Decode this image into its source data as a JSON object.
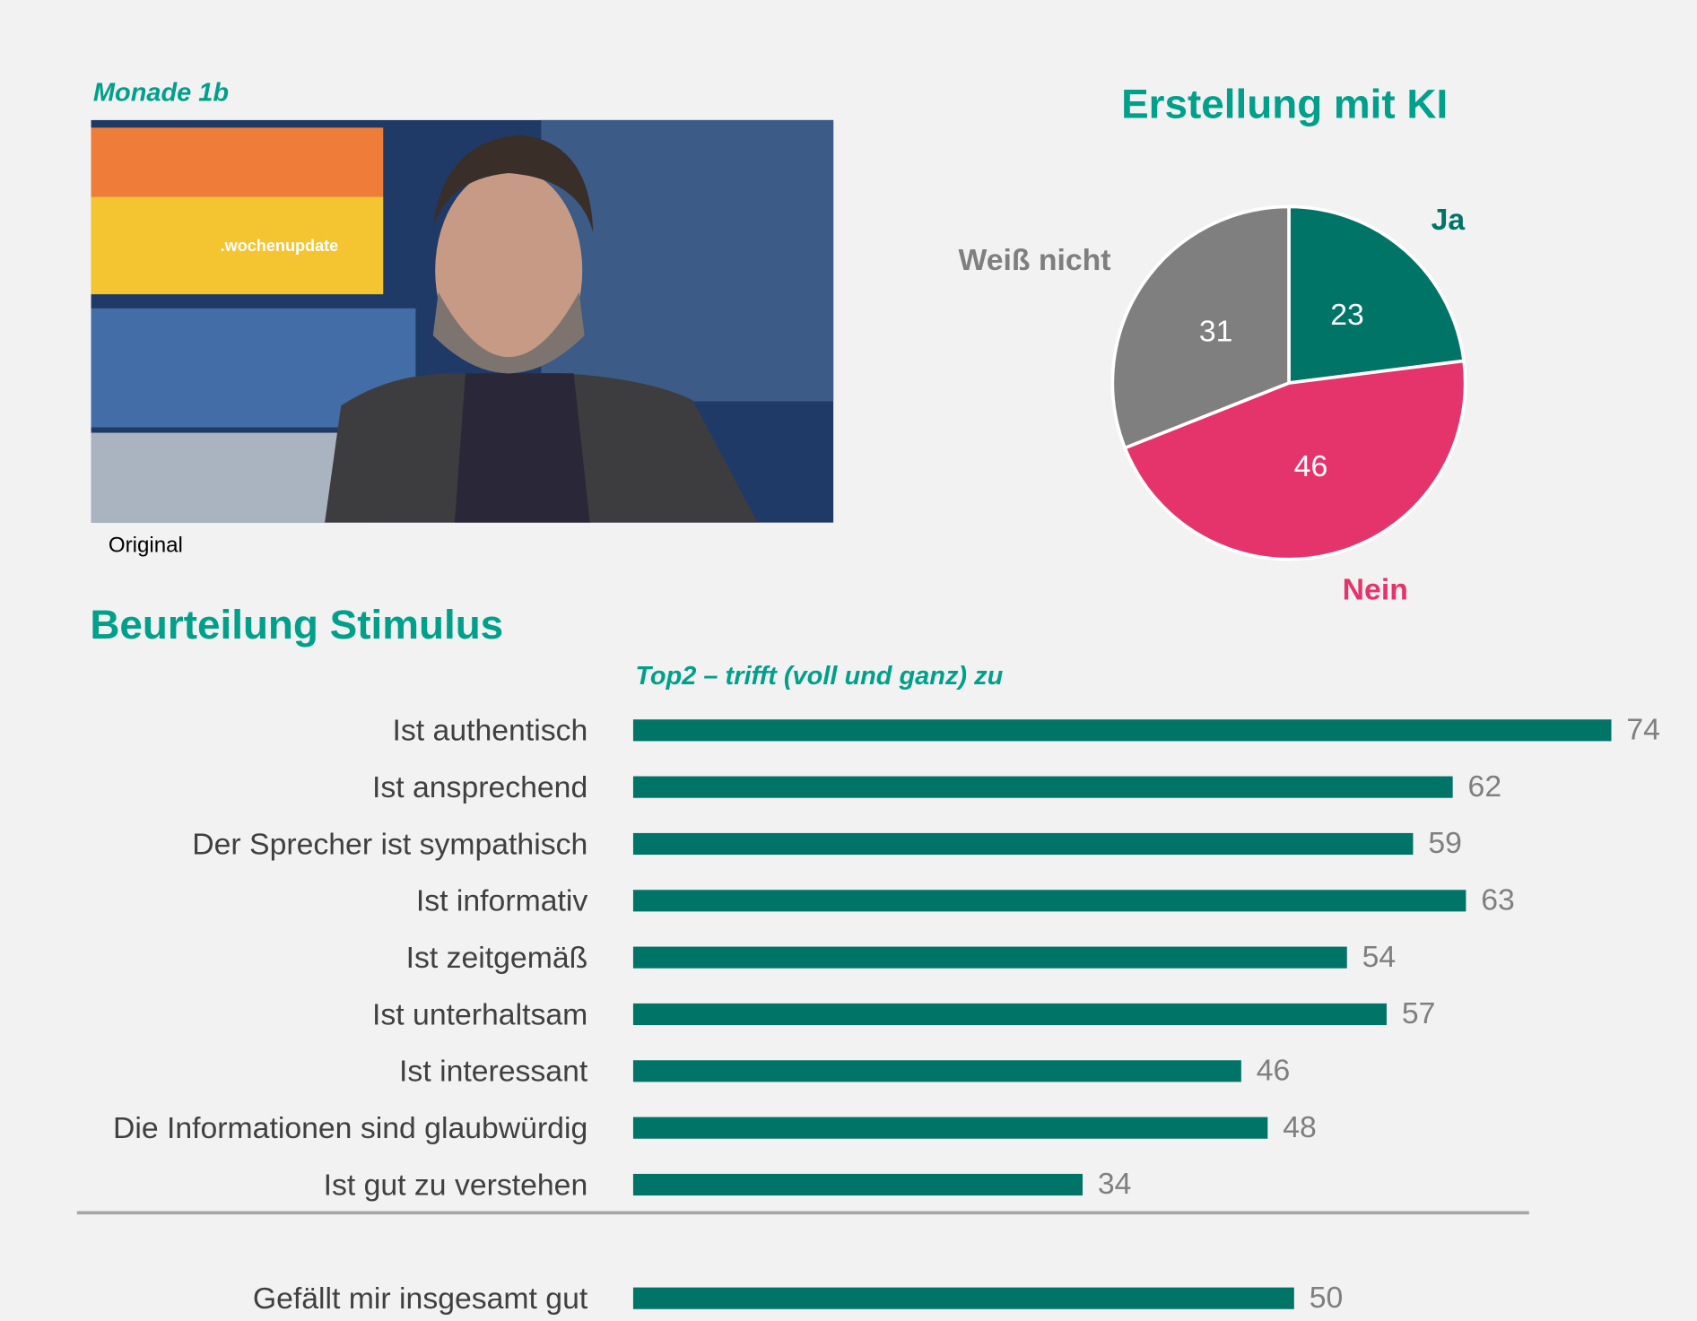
{
  "label": "Monade 1b",
  "image_caption": "Original",
  "image_text": ".wochenupdate",
  "chart_data": [
    {
      "type": "pie",
      "title": "Erstellung mit KI",
      "categories": [
        "Ja",
        "Nein",
        "Weiß nicht"
      ],
      "values": [
        23,
        46,
        31
      ],
      "colors": [
        "#007467",
        "#e5336b",
        "#7f7f7f"
      ],
      "label_colors": [
        "#007467",
        "#e5336b",
        "#7f7f7f"
      ]
    },
    {
      "type": "bar",
      "title": "Beurteilung Stimulus",
      "subtitle": "Top2 – trifft (voll und ganz) zu",
      "categories": [
        "Ist authentisch",
        "Ist ansprechend",
        "Der Sprecher ist sympathisch",
        "Ist informativ",
        "Ist zeitgemäß",
        "Ist unterhaltsam",
        "Ist interessant",
        "Die Informationen sind glaubwürdig",
        "Ist gut zu verstehen",
        "Gefällt mir insgesamt gut"
      ],
      "values": [
        74,
        62,
        59,
        63,
        54,
        57,
        46,
        48,
        34,
        50
      ],
      "color": "#007467"
    }
  ]
}
